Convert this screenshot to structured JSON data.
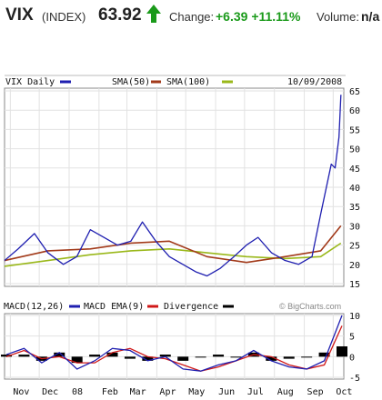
{
  "header": {
    "symbol": "VIX",
    "type": "(INDEX)",
    "price": "63.92",
    "change_label": "Change:",
    "change_value": "+6.39 +11.11%",
    "volume_label": "Volume:",
    "volume_value": "n/a",
    "up_color": "#1a9a1a",
    "arrow_icon": "up-arrow-icon"
  },
  "price_panel": {
    "series_label": "VIX Daily",
    "sma50_label": "SMA(50)",
    "sma100_label": "SMA(100)",
    "date": "10/09/2008",
    "colors": {
      "price": "#1f1fb0",
      "sma50": "#a23a1a",
      "sma100": "#9ab81a"
    }
  },
  "macd_panel": {
    "macd_label": "MACD(12,26)",
    "ema_label": "MACD EMA(9)",
    "div_label": "Divergence",
    "watermark": "© BigCharts.com",
    "colors": {
      "macd": "#1f1fb0",
      "ema": "#d01818",
      "divergence": "#000000"
    }
  },
  "chart_data": [
    {
      "type": "line",
      "title": "VIX Daily",
      "series": [
        {
          "name": "VIX Daily",
          "x": [
            "2007-10-26",
            "2007-11-09",
            "2007-11-26",
            "2007-12-10",
            "2007-12-26",
            "2008-01-09",
            "2008-01-23",
            "2008-02-06",
            "2008-02-20",
            "2008-03-05",
            "2008-03-17",
            "2008-03-31",
            "2008-04-14",
            "2008-04-28",
            "2008-05-12",
            "2008-05-23",
            "2008-06-06",
            "2008-06-20",
            "2008-07-03",
            "2008-07-15",
            "2008-07-29",
            "2008-08-12",
            "2008-08-26",
            "2008-09-09",
            "2008-09-18",
            "2008-09-29",
            "2008-10-03",
            "2008-10-07",
            "2008-10-09"
          ],
          "values": [
            21,
            24,
            28,
            23,
            20,
            22,
            29,
            27,
            25,
            26,
            31,
            26,
            22,
            20,
            18,
            17,
            19,
            22,
            25,
            27,
            23,
            21,
            20,
            22,
            33,
            46,
            45,
            53,
            64
          ]
        },
        {
          "name": "SMA(50)",
          "x": [
            "2007-10-26",
            "2007-12-10",
            "2008-01-23",
            "2008-03-05",
            "2008-04-14",
            "2008-05-23",
            "2008-07-03",
            "2008-08-12",
            "2008-09-18",
            "2008-10-09"
          ],
          "values": [
            21,
            23.5,
            24,
            25.5,
            26,
            22,
            20.5,
            22,
            23.5,
            30
          ]
        },
        {
          "name": "SMA(100)",
          "x": [
            "2007-10-26",
            "2007-12-10",
            "2008-01-23",
            "2008-03-05",
            "2008-04-14",
            "2008-05-23",
            "2008-07-03",
            "2008-08-12",
            "2008-09-18",
            "2008-10-09"
          ],
          "values": [
            19.5,
            21,
            22.5,
            23.5,
            24,
            23,
            22,
            21.5,
            22,
            25.5
          ]
        }
      ],
      "x_ticks": [
        "Nov",
        "Dec",
        "08",
        "Feb",
        "Mar",
        "Apr",
        "May",
        "Jun",
        "Jul",
        "Aug",
        "Sep",
        "Oct"
      ],
      "y_ticks": [
        15,
        20,
        25,
        30,
        35,
        40,
        45,
        50,
        55,
        60,
        65
      ],
      "ylim": [
        15,
        65
      ],
      "grid": true
    },
    {
      "type": "line",
      "title": "MACD(12,26)",
      "series": [
        {
          "name": "MACD(12,26)",
          "values": [
            0.5,
            2,
            -1.5,
            1,
            -3,
            -1,
            2,
            1.5,
            -1,
            0,
            -3,
            -3.5,
            -2,
            -1,
            1.5,
            -1,
            -2.5,
            -3,
            -1,
            10
          ]
        },
        {
          "name": "MACD EMA(9)",
          "values": [
            0,
            1.5,
            -0.5,
            0,
            -1.5,
            -1.5,
            1,
            2,
            0,
            -0.5,
            -2,
            -3.5,
            -2.5,
            -1,
            0.5,
            0,
            -2,
            -3,
            -2,
            7.5
          ]
        },
        {
          "name": "Divergence",
          "values": [
            0.5,
            0.5,
            -1,
            1,
            -1.5,
            0.5,
            1,
            -0.5,
            -1,
            0.5,
            -1,
            0,
            0.5,
            0,
            1,
            -1,
            -0.5,
            0,
            1,
            2.5
          ]
        }
      ],
      "y_ticks": [
        -5,
        0,
        5,
        10
      ],
      "ylim": [
        -5,
        10
      ],
      "grid": true
    }
  ]
}
